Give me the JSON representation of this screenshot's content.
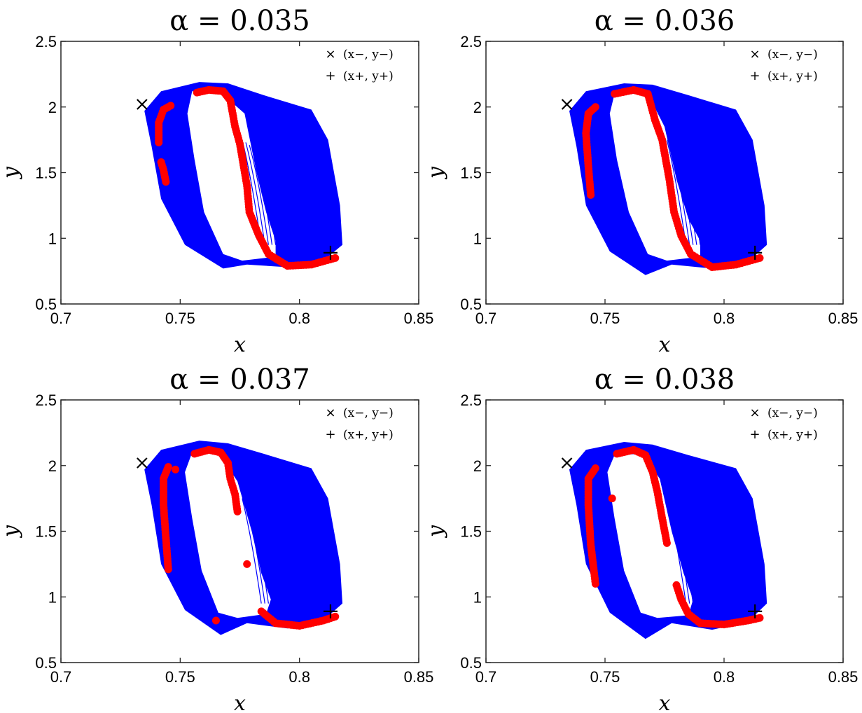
{
  "chart_data": [
    {
      "type": "scatter",
      "title": "α = 0.035",
      "xlabel": "x",
      "ylabel": "y",
      "xlim": [
        0.7,
        0.85
      ],
      "ylim": [
        0.5,
        2.5
      ],
      "xticks": [
        "0.7",
        "0.75",
        "0.8",
        "0.85"
      ],
      "yticks": [
        "0.5",
        "1",
        "1.5",
        "2",
        "2.5"
      ],
      "legend": [
        "(x−, y−)",
        "(x+, y+)"
      ],
      "legend_position": "top-right",
      "colors": {
        "attractor": "#0000ff",
        "points": "#ff0000",
        "markers": "#000000"
      },
      "fixed_points": {
        "minus": [
          0.734,
          2.02
        ],
        "plus": [
          0.813,
          0.89
        ]
      },
      "band_left": [
        [
          0.735,
          1.97
        ],
        [
          0.742,
          2.12
        ],
        [
          0.758,
          2.19
        ],
        [
          0.77,
          2.18
        ],
        [
          0.785,
          2.09
        ],
        [
          0.805,
          1.98
        ],
        [
          0.812,
          1.75
        ],
        [
          0.817,
          1.25
        ],
        [
          0.818,
          0.95
        ],
        [
          0.81,
          0.83
        ],
        [
          0.795,
          0.78
        ],
        [
          0.778,
          0.8
        ],
        [
          0.768,
          0.77
        ],
        [
          0.752,
          0.95
        ],
        [
          0.742,
          1.3
        ],
        [
          0.738,
          1.7
        ]
      ],
      "hole": [
        [
          0.755,
          2.12
        ],
        [
          0.767,
          2.11
        ],
        [
          0.777,
          1.95
        ],
        [
          0.782,
          1.5
        ],
        [
          0.786,
          1.2
        ],
        [
          0.79,
          0.98
        ],
        [
          0.79,
          0.86
        ],
        [
          0.776,
          0.83
        ],
        [
          0.768,
          0.88
        ],
        [
          0.76,
          1.2
        ],
        [
          0.756,
          1.6
        ],
        [
          0.753,
          1.95
        ]
      ],
      "red_curves": [
        [
          [
            0.741,
            1.73
          ],
          [
            0.741,
            1.88
          ],
          [
            0.743,
            1.98
          ],
          [
            0.746,
            2.01
          ]
        ],
        [
          [
            0.742,
            1.58
          ],
          [
            0.743,
            1.52
          ],
          [
            0.744,
            1.43
          ]
        ],
        [
          [
            0.757,
            2.11
          ],
          [
            0.762,
            2.13
          ],
          [
            0.768,
            2.12
          ],
          [
            0.771,
            2.05
          ],
          [
            0.773,
            1.85
          ],
          [
            0.775,
            1.72
          ],
          [
            0.778,
            1.4
          ],
          [
            0.779,
            1.2
          ],
          [
            0.783,
            1.02
          ],
          [
            0.787,
            0.88
          ],
          [
            0.795,
            0.79
          ],
          [
            0.805,
            0.8
          ],
          [
            0.815,
            0.85
          ]
        ]
      ]
    },
    {
      "type": "scatter",
      "title": "α = 0.036",
      "xlabel": "x",
      "ylabel": "y",
      "xlim": [
        0.7,
        0.85
      ],
      "ylim": [
        0.5,
        2.5
      ],
      "xticks": [
        "0.7",
        "0.75",
        "0.8",
        "0.85"
      ],
      "yticks": [
        "0.5",
        "1",
        "1.5",
        "2",
        "2.5"
      ],
      "legend": [
        "(x−, y−)",
        "(x+, y+)"
      ],
      "legend_position": "top-right",
      "colors": {
        "attractor": "#0000ff",
        "points": "#ff0000",
        "markers": "#000000"
      },
      "fixed_points": {
        "minus": [
          0.734,
          2.02
        ],
        "plus": [
          0.813,
          0.89
        ]
      },
      "band_left": [
        [
          0.735,
          1.97
        ],
        [
          0.742,
          2.12
        ],
        [
          0.758,
          2.18
        ],
        [
          0.77,
          2.17
        ],
        [
          0.785,
          2.09
        ],
        [
          0.805,
          1.98
        ],
        [
          0.812,
          1.75
        ],
        [
          0.817,
          1.25
        ],
        [
          0.818,
          0.95
        ],
        [
          0.81,
          0.82
        ],
        [
          0.795,
          0.77
        ],
        [
          0.778,
          0.8
        ],
        [
          0.767,
          0.72
        ],
        [
          0.752,
          0.9
        ],
        [
          0.742,
          1.25
        ],
        [
          0.738,
          1.7
        ]
      ],
      "hole": [
        [
          0.754,
          2.1
        ],
        [
          0.768,
          2.1
        ],
        [
          0.775,
          1.85
        ],
        [
          0.78,
          1.45
        ],
        [
          0.785,
          1.15
        ],
        [
          0.79,
          0.98
        ],
        [
          0.79,
          0.86
        ],
        [
          0.776,
          0.83
        ],
        [
          0.768,
          0.88
        ],
        [
          0.76,
          1.2
        ],
        [
          0.755,
          1.6
        ],
        [
          0.752,
          1.95
        ]
      ],
      "red_curves": [
        [
          [
            0.744,
            1.33
          ],
          [
            0.743,
            1.55
          ],
          [
            0.742,
            1.8
          ],
          [
            0.743,
            1.95
          ],
          [
            0.746,
            2.0
          ]
        ],
        [
          [
            0.754,
            2.1
          ],
          [
            0.762,
            2.13
          ],
          [
            0.768,
            2.1
          ],
          [
            0.771,
            1.9
          ],
          [
            0.774,
            1.75
          ],
          [
            0.777,
            1.45
          ],
          [
            0.779,
            1.2
          ],
          [
            0.782,
            1.02
          ],
          [
            0.786,
            0.88
          ],
          [
            0.795,
            0.78
          ],
          [
            0.805,
            0.8
          ],
          [
            0.815,
            0.85
          ]
        ]
      ]
    },
    {
      "type": "scatter",
      "title": "α = 0.037",
      "xlabel": "x",
      "ylabel": "y",
      "xlim": [
        0.7,
        0.85
      ],
      "ylim": [
        0.5,
        2.5
      ],
      "xticks": [
        "0.7",
        "0.75",
        "0.8",
        "0.85"
      ],
      "yticks": [
        "0.5",
        "1",
        "1.5",
        "2",
        "2.5"
      ],
      "legend": [
        "(x−, y−)",
        "(x+, y+)"
      ],
      "legend_position": "top-right",
      "colors": {
        "attractor": "#0000ff",
        "points": "#ff0000",
        "markers": "#000000"
      },
      "fixed_points": {
        "minus": [
          0.734,
          2.02
        ],
        "plus": [
          0.813,
          0.89
        ]
      },
      "band_left": [
        [
          0.735,
          1.97
        ],
        [
          0.742,
          2.12
        ],
        [
          0.758,
          2.19
        ],
        [
          0.77,
          2.17
        ],
        [
          0.785,
          2.09
        ],
        [
          0.805,
          1.98
        ],
        [
          0.812,
          1.75
        ],
        [
          0.817,
          1.25
        ],
        [
          0.818,
          0.95
        ],
        [
          0.81,
          0.82
        ],
        [
          0.795,
          0.76
        ],
        [
          0.778,
          0.8
        ],
        [
          0.767,
          0.71
        ],
        [
          0.752,
          0.9
        ],
        [
          0.742,
          1.25
        ],
        [
          0.738,
          1.7
        ]
      ],
      "hole": [
        [
          0.755,
          2.1
        ],
        [
          0.766,
          2.1
        ],
        [
          0.774,
          1.88
        ],
        [
          0.78,
          1.5
        ],
        [
          0.784,
          1.18
        ],
        [
          0.788,
          0.98
        ],
        [
          0.786,
          0.87
        ],
        [
          0.774,
          0.84
        ],
        [
          0.766,
          0.88
        ],
        [
          0.759,
          1.2
        ],
        [
          0.755,
          1.6
        ],
        [
          0.752,
          1.95
        ]
      ],
      "red_curves": [
        [
          [
            0.745,
            1.21
          ],
          [
            0.744,
            1.45
          ],
          [
            0.743,
            1.7
          ],
          [
            0.743,
            1.9
          ],
          [
            0.745,
            1.99
          ]
        ],
        [
          [
            0.748,
            1.97
          ]
        ],
        [
          [
            0.756,
            2.09
          ],
          [
            0.762,
            2.12
          ],
          [
            0.767,
            2.1
          ],
          [
            0.77,
            2.02
          ],
          [
            0.771,
            1.9
          ],
          [
            0.773,
            1.78
          ],
          [
            0.774,
            1.65
          ]
        ],
        [
          [
            0.778,
            1.25
          ]
        ],
        [
          [
            0.765,
            0.82
          ]
        ],
        [
          [
            0.784,
            0.89
          ],
          [
            0.79,
            0.8
          ],
          [
            0.8,
            0.78
          ],
          [
            0.81,
            0.82
          ],
          [
            0.815,
            0.85
          ]
        ]
      ]
    },
    {
      "type": "scatter",
      "title": "α = 0.038",
      "xlabel": "x",
      "ylabel": "y",
      "xlim": [
        0.7,
        0.85
      ],
      "ylim": [
        0.5,
        2.5
      ],
      "xticks": [
        "0.7",
        "0.75",
        "0.8",
        "0.85"
      ],
      "yticks": [
        "0.5",
        "1",
        "1.5",
        "2",
        "2.5"
      ],
      "legend": [
        "(x−, y−)",
        "(x+, y+)"
      ],
      "legend_position": "top-right",
      "colors": {
        "attractor": "#0000ff",
        "points": "#ff0000",
        "markers": "#000000"
      },
      "fixed_points": {
        "minus": [
          0.734,
          2.02
        ],
        "plus": [
          0.813,
          0.89
        ]
      },
      "band_left": [
        [
          0.735,
          1.97
        ],
        [
          0.742,
          2.12
        ],
        [
          0.758,
          2.18
        ],
        [
          0.77,
          2.16
        ],
        [
          0.785,
          2.08
        ],
        [
          0.805,
          1.98
        ],
        [
          0.812,
          1.75
        ],
        [
          0.817,
          1.25
        ],
        [
          0.818,
          0.95
        ],
        [
          0.81,
          0.81
        ],
        [
          0.795,
          0.75
        ],
        [
          0.778,
          0.8
        ],
        [
          0.767,
          0.68
        ],
        [
          0.752,
          0.88
        ],
        [
          0.742,
          1.25
        ],
        [
          0.738,
          1.7
        ]
      ],
      "hole": [
        [
          0.754,
          2.08
        ],
        [
          0.766,
          2.09
        ],
        [
          0.773,
          1.9
        ],
        [
          0.778,
          1.5
        ],
        [
          0.783,
          1.18
        ],
        [
          0.787,
          0.98
        ],
        [
          0.785,
          0.86
        ],
        [
          0.772,
          0.84
        ],
        [
          0.765,
          0.88
        ],
        [
          0.758,
          1.2
        ],
        [
          0.754,
          1.6
        ],
        [
          0.751,
          1.95
        ]
      ],
      "red_curves": [
        [
          [
            0.746,
            1.1
          ],
          [
            0.744,
            1.4
          ],
          [
            0.743,
            1.7
          ],
          [
            0.743,
            1.9
          ],
          [
            0.746,
            1.98
          ]
        ],
        [
          [
            0.753,
            1.75
          ]
        ],
        [
          [
            0.755,
            2.09
          ],
          [
            0.762,
            2.12
          ],
          [
            0.767,
            2.08
          ],
          [
            0.77,
            1.95
          ],
          [
            0.772,
            1.8
          ],
          [
            0.774,
            1.6
          ],
          [
            0.776,
            1.41
          ]
        ],
        [
          [
            0.78,
            1.09
          ],
          [
            0.782,
            0.98
          ],
          [
            0.785,
            0.87
          ],
          [
            0.79,
            0.8
          ],
          [
            0.8,
            0.79
          ],
          [
            0.81,
            0.82
          ],
          [
            0.815,
            0.84
          ]
        ]
      ]
    }
  ]
}
